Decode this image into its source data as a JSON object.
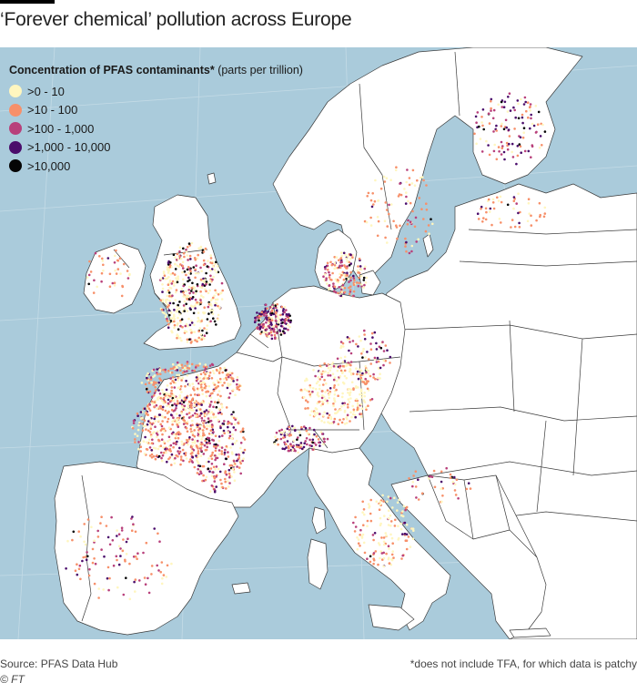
{
  "header": {
    "title": "‘Forever chemical’ pollution across Europe"
  },
  "legend": {
    "title_bold": "Concentration of PFAS contaminants*",
    "title_unit": " (parts per trillion)",
    "items": [
      {
        "label": ">0 - 10",
        "color": "#fff6bf"
      },
      {
        "label": ">10 - 100",
        "color": "#f7906a"
      },
      {
        "label": ">100 - 1,000",
        "color": "#b8407b"
      },
      {
        "label": ">1,000 - 10,000",
        "color": "#4a0c6b"
      },
      {
        "label": ">10,000",
        "color": "#050505"
      }
    ]
  },
  "colors": {
    "sea": "#aacbdb",
    "land": "#ffffff",
    "border": "#3a3a3a",
    "graticule": "#c4dbe6"
  },
  "footer": {
    "source": "Source: PFAS Data Hub",
    "note": "*does not include TFA, for which data is patchy",
    "credit": "© FT"
  }
}
